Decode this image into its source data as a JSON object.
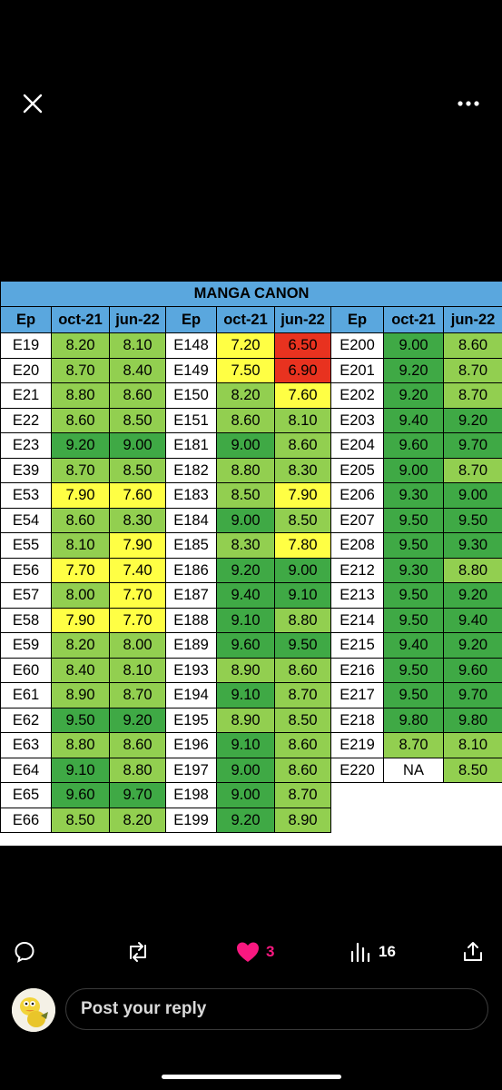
{
  "colors": {
    "header_blue": "#5aa7de",
    "dark_green": "#3fa945",
    "light_green": "#92cf50",
    "yellow": "#ffff44",
    "red": "#e8321f",
    "like_pink": "#f91880",
    "white": "#ffffff"
  },
  "top_bar": {
    "close_icon": "close-icon",
    "more_icon": "more-horizontal-icon"
  },
  "table": {
    "title": "MANGA CANON",
    "headers": [
      "Ep",
      "oct-21",
      "jun-22",
      "Ep",
      "oct-21",
      "jun-22",
      "Ep",
      "oct-21",
      "jun-22"
    ],
    "rows": [
      [
        {
          "t": "E19"
        },
        {
          "t": "8.20",
          "c": "lg"
        },
        {
          "t": "8.10",
          "c": "lg"
        },
        {
          "t": "E148"
        },
        {
          "t": "7.20",
          "c": "y"
        },
        {
          "t": "6.50",
          "c": "r"
        },
        {
          "t": "E200"
        },
        {
          "t": "9.00",
          "c": "dg"
        },
        {
          "t": "8.60",
          "c": "lg"
        }
      ],
      [
        {
          "t": "E20"
        },
        {
          "t": "8.70",
          "c": "lg"
        },
        {
          "t": "8.40",
          "c": "lg"
        },
        {
          "t": "E149"
        },
        {
          "t": "7.50",
          "c": "y"
        },
        {
          "t": "6.90",
          "c": "r"
        },
        {
          "t": "E201"
        },
        {
          "t": "9.20",
          "c": "dg"
        },
        {
          "t": "8.70",
          "c": "lg"
        }
      ],
      [
        {
          "t": "E21"
        },
        {
          "t": "8.80",
          "c": "lg"
        },
        {
          "t": "8.60",
          "c": "lg"
        },
        {
          "t": "E150"
        },
        {
          "t": "8.20",
          "c": "lg"
        },
        {
          "t": "7.60",
          "c": "y"
        },
        {
          "t": "E202"
        },
        {
          "t": "9.20",
          "c": "dg"
        },
        {
          "t": "8.70",
          "c": "lg"
        }
      ],
      [
        {
          "t": "E22"
        },
        {
          "t": "8.60",
          "c": "lg"
        },
        {
          "t": "8.50",
          "c": "lg"
        },
        {
          "t": "E151"
        },
        {
          "t": "8.60",
          "c": "lg"
        },
        {
          "t": "8.10",
          "c": "lg"
        },
        {
          "t": "E203"
        },
        {
          "t": "9.40",
          "c": "dg"
        },
        {
          "t": "9.20",
          "c": "dg"
        }
      ],
      [
        {
          "t": "E23"
        },
        {
          "t": "9.20",
          "c": "dg"
        },
        {
          "t": "9.00",
          "c": "dg"
        },
        {
          "t": "E181"
        },
        {
          "t": "9.00",
          "c": "dg"
        },
        {
          "t": "8.60",
          "c": "lg"
        },
        {
          "t": "E204"
        },
        {
          "t": "9.60",
          "c": "dg"
        },
        {
          "t": "9.70",
          "c": "dg"
        }
      ],
      [
        {
          "t": "E39"
        },
        {
          "t": "8.70",
          "c": "lg"
        },
        {
          "t": "8.50",
          "c": "lg"
        },
        {
          "t": "E182"
        },
        {
          "t": "8.80",
          "c": "lg"
        },
        {
          "t": "8.30",
          "c": "lg"
        },
        {
          "t": "E205"
        },
        {
          "t": "9.00",
          "c": "dg"
        },
        {
          "t": "8.70",
          "c": "lg"
        }
      ],
      [
        {
          "t": "E53"
        },
        {
          "t": "7.90",
          "c": "y"
        },
        {
          "t": "7.60",
          "c": "y"
        },
        {
          "t": "E183"
        },
        {
          "t": "8.50",
          "c": "lg"
        },
        {
          "t": "7.90",
          "c": "y"
        },
        {
          "t": "E206"
        },
        {
          "t": "9.30",
          "c": "dg"
        },
        {
          "t": "9.00",
          "c": "dg"
        }
      ],
      [
        {
          "t": "E54"
        },
        {
          "t": "8.60",
          "c": "lg"
        },
        {
          "t": "8.30",
          "c": "lg"
        },
        {
          "t": "E184"
        },
        {
          "t": "9.00",
          "c": "dg"
        },
        {
          "t": "8.50",
          "c": "lg"
        },
        {
          "t": "E207"
        },
        {
          "t": "9.50",
          "c": "dg"
        },
        {
          "t": "9.50",
          "c": "dg"
        }
      ],
      [
        {
          "t": "E55"
        },
        {
          "t": "8.10",
          "c": "lg"
        },
        {
          "t": "7.90",
          "c": "y"
        },
        {
          "t": "E185"
        },
        {
          "t": "8.30",
          "c": "lg"
        },
        {
          "t": "7.80",
          "c": "y"
        },
        {
          "t": "E208"
        },
        {
          "t": "9.50",
          "c": "dg"
        },
        {
          "t": "9.30",
          "c": "dg"
        }
      ],
      [
        {
          "t": "E56"
        },
        {
          "t": "7.70",
          "c": "y"
        },
        {
          "t": "7.40",
          "c": "y"
        },
        {
          "t": "E186"
        },
        {
          "t": "9.20",
          "c": "dg"
        },
        {
          "t": "9.00",
          "c": "dg"
        },
        {
          "t": "E212"
        },
        {
          "t": "9.30",
          "c": "dg"
        },
        {
          "t": "8.80",
          "c": "lg"
        }
      ],
      [
        {
          "t": "E57"
        },
        {
          "t": "8.00",
          "c": "lg"
        },
        {
          "t": "7.70",
          "c": "y"
        },
        {
          "t": "E187"
        },
        {
          "t": "9.40",
          "c": "dg"
        },
        {
          "t": "9.10",
          "c": "dg"
        },
        {
          "t": "E213"
        },
        {
          "t": "9.50",
          "c": "dg"
        },
        {
          "t": "9.20",
          "c": "dg"
        }
      ],
      [
        {
          "t": "E58"
        },
        {
          "t": "7.90",
          "c": "y"
        },
        {
          "t": "7.70",
          "c": "y"
        },
        {
          "t": "E188"
        },
        {
          "t": "9.10",
          "c": "dg"
        },
        {
          "t": "8.80",
          "c": "lg"
        },
        {
          "t": "E214"
        },
        {
          "t": "9.50",
          "c": "dg"
        },
        {
          "t": "9.40",
          "c": "dg"
        }
      ],
      [
        {
          "t": "E59"
        },
        {
          "t": "8.20",
          "c": "lg"
        },
        {
          "t": "8.00",
          "c": "lg"
        },
        {
          "t": "E189"
        },
        {
          "t": "9.60",
          "c": "dg"
        },
        {
          "t": "9.50",
          "c": "dg"
        },
        {
          "t": "E215"
        },
        {
          "t": "9.40",
          "c": "dg"
        },
        {
          "t": "9.20",
          "c": "dg"
        }
      ],
      [
        {
          "t": "E60"
        },
        {
          "t": "8.40",
          "c": "lg"
        },
        {
          "t": "8.10",
          "c": "lg"
        },
        {
          "t": "E193"
        },
        {
          "t": "8.90",
          "c": "lg"
        },
        {
          "t": "8.60",
          "c": "lg"
        },
        {
          "t": "E216"
        },
        {
          "t": "9.50",
          "c": "dg"
        },
        {
          "t": "9.60",
          "c": "dg"
        }
      ],
      [
        {
          "t": "E61"
        },
        {
          "t": "8.90",
          "c": "lg"
        },
        {
          "t": "8.70",
          "c": "lg"
        },
        {
          "t": "E194"
        },
        {
          "t": "9.10",
          "c": "dg"
        },
        {
          "t": "8.70",
          "c": "lg"
        },
        {
          "t": "E217"
        },
        {
          "t": "9.50",
          "c": "dg"
        },
        {
          "t": "9.70",
          "c": "dg"
        }
      ],
      [
        {
          "t": "E62"
        },
        {
          "t": "9.50",
          "c": "dg"
        },
        {
          "t": "9.20",
          "c": "dg"
        },
        {
          "t": "E195"
        },
        {
          "t": "8.90",
          "c": "lg"
        },
        {
          "t": "8.50",
          "c": "lg"
        },
        {
          "t": "E218"
        },
        {
          "t": "9.80",
          "c": "dg"
        },
        {
          "t": "9.80",
          "c": "dg"
        }
      ],
      [
        {
          "t": "E63"
        },
        {
          "t": "8.80",
          "c": "lg"
        },
        {
          "t": "8.60",
          "c": "lg"
        },
        {
          "t": "E196"
        },
        {
          "t": "9.10",
          "c": "dg"
        },
        {
          "t": "8.60",
          "c": "lg"
        },
        {
          "t": "E219"
        },
        {
          "t": "8.70",
          "c": "lg"
        },
        {
          "t": "8.10",
          "c": "lg"
        }
      ],
      [
        {
          "t": "E64"
        },
        {
          "t": "9.10",
          "c": "dg"
        },
        {
          "t": "8.80",
          "c": "lg"
        },
        {
          "t": "E197"
        },
        {
          "t": "9.00",
          "c": "dg"
        },
        {
          "t": "8.60",
          "c": "lg"
        },
        {
          "t": "E220"
        },
        {
          "t": "NA",
          "c": "w"
        },
        {
          "t": "8.50",
          "c": "lg"
        }
      ],
      [
        {
          "t": "E65"
        },
        {
          "t": "9.60",
          "c": "dg"
        },
        {
          "t": "9.70",
          "c": "dg"
        },
        {
          "t": "E198"
        },
        {
          "t": "9.00",
          "c": "dg"
        },
        {
          "t": "8.70",
          "c": "lg"
        }
      ],
      [
        {
          "t": "E66"
        },
        {
          "t": "8.50",
          "c": "lg"
        },
        {
          "t": "8.20",
          "c": "lg"
        },
        {
          "t": "E199"
        },
        {
          "t": "9.20",
          "c": "dg"
        },
        {
          "t": "8.90",
          "c": "lg"
        }
      ]
    ]
  },
  "actions": {
    "reply_icon": "reply-icon",
    "repost_icon": "repost-icon",
    "like_icon": "heart-icon",
    "like_count": "3",
    "views_icon": "views-icon",
    "views_count": "16",
    "share_icon": "share-icon"
  },
  "reply": {
    "placeholder": "Post your reply",
    "avatar_icon": "avatar-icon"
  }
}
